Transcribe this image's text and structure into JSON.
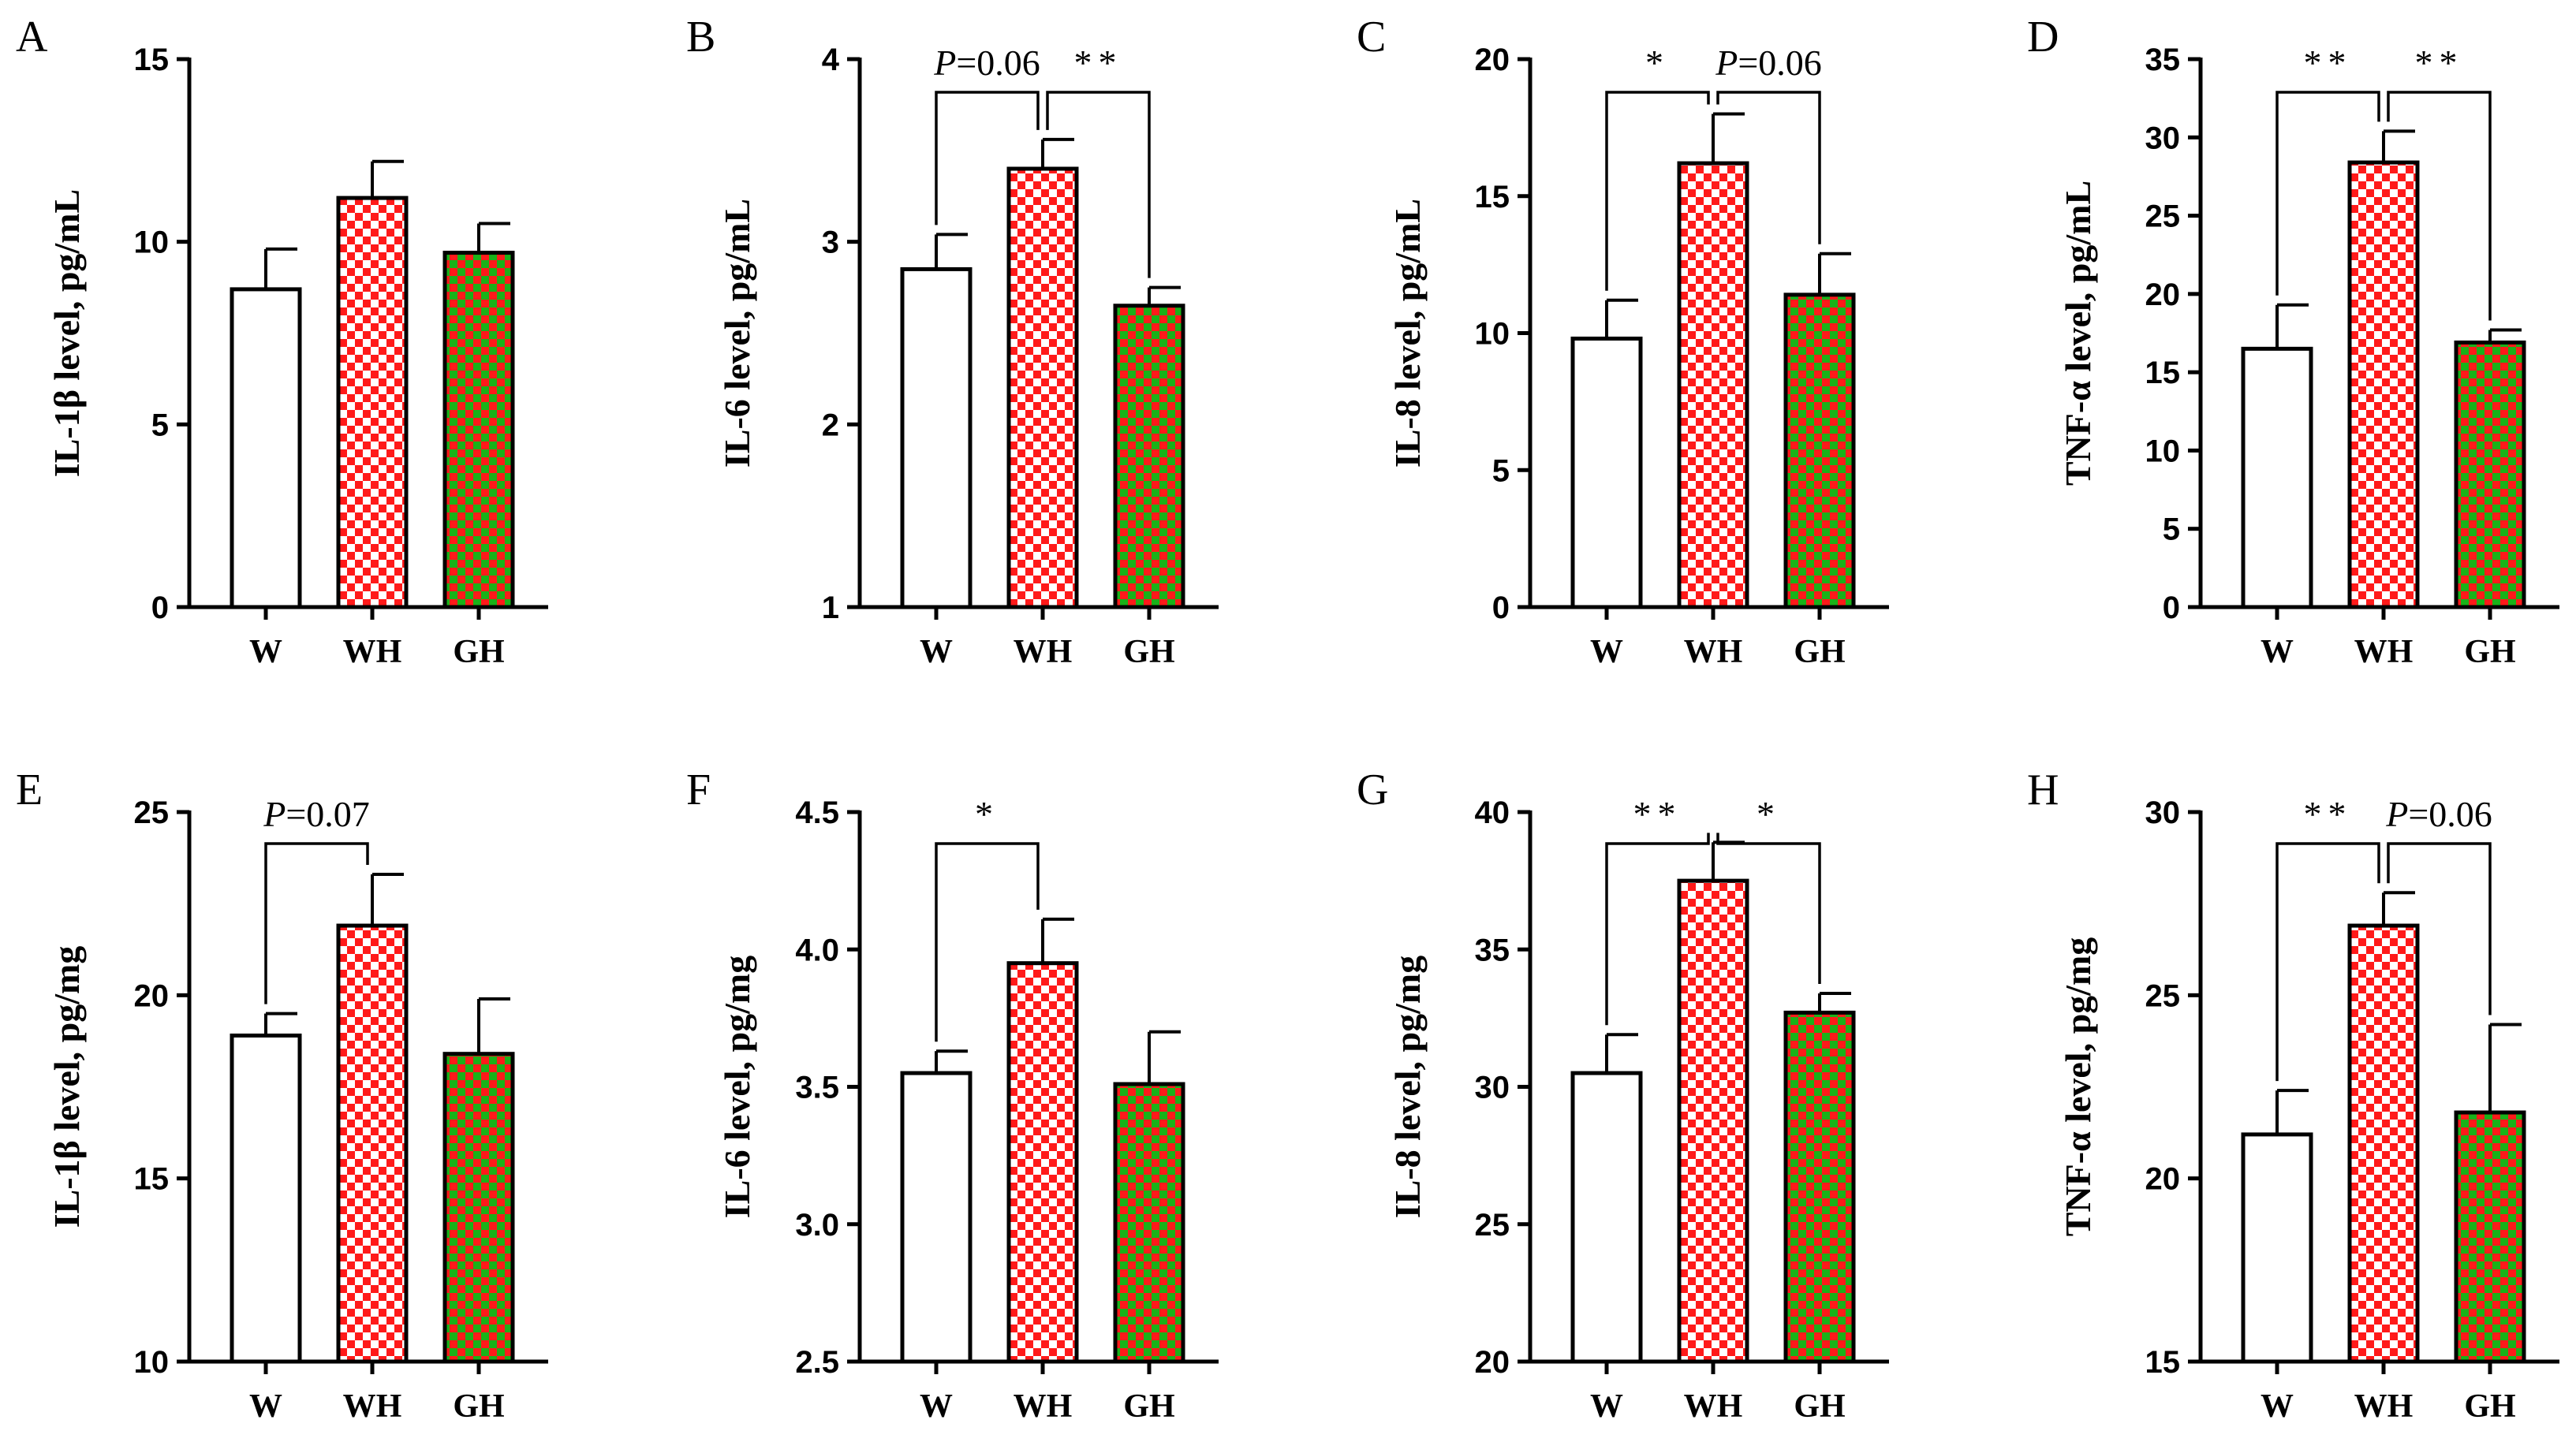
{
  "colors": {
    "axis": "#000000",
    "bar_w_fill": "#ffffff",
    "red": "#ff1a1a",
    "green": "#19b219",
    "white": "#ffffff"
  },
  "chart_data": [
    {
      "panel": "A",
      "type": "bar",
      "ylabel": "IL-1β level, pg/mL",
      "categories": [
        "W",
        "WH",
        "GH"
      ],
      "values": [
        8.7,
        11.2,
        9.7
      ],
      "errors": [
        1.1,
        1.0,
        0.8
      ],
      "ylim": [
        0,
        15
      ],
      "yticks": [
        0,
        5,
        10,
        15
      ],
      "ytick_labels": [
        "0",
        "5",
        "10",
        "15"
      ],
      "comparisons": []
    },
    {
      "panel": "B",
      "type": "bar",
      "ylabel": "IL-6 level, pg/mL",
      "categories": [
        "W",
        "WH",
        "GH"
      ],
      "values": [
        2.85,
        3.4,
        2.65
      ],
      "errors": [
        0.19,
        0.16,
        0.1
      ],
      "ylim": [
        1,
        4
      ],
      "yticks": [
        1,
        2,
        3,
        4
      ],
      "ytick_labels": [
        "1",
        "2",
        "3",
        "4"
      ],
      "comparisons": [
        {
          "from": 0,
          "to": 1,
          "label": "P=0.06"
        },
        {
          "from": 1,
          "to": 2,
          "label": "**"
        }
      ]
    },
    {
      "panel": "C",
      "type": "bar",
      "ylabel": "IL-8 level, pg/mL",
      "categories": [
        "W",
        "WH",
        "GH"
      ],
      "values": [
        9.8,
        16.2,
        11.4
      ],
      "errors": [
        1.4,
        1.8,
        1.5
      ],
      "ylim": [
        0,
        20
      ],
      "yticks": [
        0,
        5,
        10,
        15,
        20
      ],
      "ytick_labels": [
        "0",
        "5",
        "10",
        "15",
        "20"
      ],
      "comparisons": [
        {
          "from": 0,
          "to": 1,
          "label": "*"
        },
        {
          "from": 1,
          "to": 2,
          "label": "P=0.06"
        }
      ]
    },
    {
      "panel": "D",
      "type": "bar",
      "ylabel": "TNF-α level, pg/mL",
      "categories": [
        "W",
        "WH",
        "GH"
      ],
      "values": [
        16.5,
        28.4,
        16.9
      ],
      "errors": [
        2.8,
        2.0,
        0.8
      ],
      "ylim": [
        0,
        35
      ],
      "yticks": [
        0,
        5,
        10,
        15,
        20,
        25,
        30,
        35
      ],
      "ytick_labels": [
        "0",
        "5",
        "10",
        "15",
        "20",
        "25",
        "30",
        "35"
      ],
      "comparisons": [
        {
          "from": 0,
          "to": 1,
          "label": "**"
        },
        {
          "from": 1,
          "to": 2,
          "label": "**"
        }
      ]
    },
    {
      "panel": "E",
      "type": "bar",
      "ylabel": "IL-1β level, pg/mg",
      "categories": [
        "W",
        "WH",
        "GH"
      ],
      "values": [
        18.9,
        21.9,
        18.4
      ],
      "errors": [
        0.6,
        1.4,
        1.5
      ],
      "ylim": [
        10,
        25
      ],
      "yticks": [
        10,
        15,
        20,
        25
      ],
      "ytick_labels": [
        "10",
        "15",
        "20",
        "25"
      ],
      "comparisons": [
        {
          "from": 0,
          "to": 1,
          "label": "P=0.07"
        }
      ]
    },
    {
      "panel": "F",
      "type": "bar",
      "ylabel": "IL-6 level, pg/mg",
      "categories": [
        "W",
        "WH",
        "GH"
      ],
      "values": [
        3.55,
        3.95,
        3.51
      ],
      "errors": [
        0.08,
        0.16,
        0.19
      ],
      "ylim": [
        2.5,
        4.5
      ],
      "yticks": [
        2.5,
        3.0,
        3.5,
        4.0,
        4.5
      ],
      "ytick_labels": [
        "2.5",
        "3.0",
        "3.5",
        "4.0",
        "4.5"
      ],
      "comparisons": [
        {
          "from": 0,
          "to": 1,
          "label": "*"
        }
      ]
    },
    {
      "panel": "G",
      "type": "bar",
      "ylabel": "IL-8 level, pg/mg",
      "categories": [
        "W",
        "WH",
        "GH"
      ],
      "values": [
        30.5,
        37.5,
        32.7
      ],
      "errors": [
        1.4,
        1.4,
        0.7
      ],
      "ylim": [
        20,
        40
      ],
      "yticks": [
        20,
        25,
        30,
        35,
        40
      ],
      "ytick_labels": [
        "20",
        "25",
        "30",
        "35",
        "40"
      ],
      "comparisons": [
        {
          "from": 0,
          "to": 1,
          "label": "**"
        },
        {
          "from": 1,
          "to": 2,
          "label": "*"
        }
      ]
    },
    {
      "panel": "H",
      "type": "bar",
      "ylabel": "TNF-α level, pg/mg",
      "categories": [
        "W",
        "WH",
        "GH"
      ],
      "values": [
        21.2,
        26.9,
        21.8
      ],
      "errors": [
        1.2,
        0.9,
        2.4
      ],
      "ylim": [
        15,
        30
      ],
      "yticks": [
        15,
        20,
        25,
        30
      ],
      "ytick_labels": [
        "15",
        "20",
        "25",
        "30"
      ],
      "comparisons": [
        {
          "from": 0,
          "to": 1,
          "label": "**"
        },
        {
          "from": 1,
          "to": 2,
          "label": "P=0.06"
        }
      ]
    }
  ]
}
